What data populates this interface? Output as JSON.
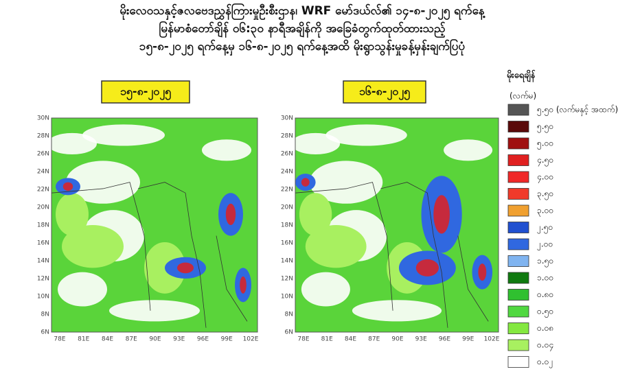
{
  "header": {
    "lines": [
      "မိုးလေဝသနှင့်ဇလဗေဒညွှန်ကြားမှုဦးစီးဌာန၊ WRF မော်ဒယ်လ်၏ ၁၄-၈-၂၀၂၅ ရက်နေ့",
      "မြန်မာစံတော်ချိန် ၀၆:၃၀ နာရီအချိန်ကို အခြေခံတွက်ထုတ်ထားသည့်",
      "၁၅-၈-၂၀၂၅ ရက်နေ့မှ ၁၆-၈-၂၀၂၅ ရက်နေ့အထိ မိုးရွာသွန်းမှုခန့်မှန်းချက်ပြပုံ"
    ]
  },
  "maps": [
    {
      "date": "၁၅-၈-၂၀၂၅"
    },
    {
      "date": "၁၆-၈-၂၀၂၅"
    }
  ],
  "axes": {
    "lat_labels": [
      "30N",
      "28N",
      "26N",
      "24N",
      "22N",
      "20N",
      "18N",
      "16N",
      "14N",
      "12N",
      "10N",
      "8N",
      "6N"
    ],
    "lon_labels": [
      "78E",
      "81E",
      "84E",
      "87E",
      "90E",
      "93E",
      "96E",
      "99E",
      "102E"
    ]
  },
  "legend": {
    "title": "မိုးရေချိန်",
    "unit": "(လက်မ)",
    "items": [
      {
        "label": "၅.၅၀ (လက်မနှင့် အထက်)",
        "color": "#555555"
      },
      {
        "label": "၅.၅၀",
        "color": "#5a0a0a"
      },
      {
        "label": "၅.၀၀",
        "color": "#a01010"
      },
      {
        "label": "၄.၅၀",
        "color": "#e02020"
      },
      {
        "label": "၄.၀၀",
        "color": "#f02828"
      },
      {
        "label": "၃.၅၀",
        "color": "#f03a2a"
      },
      {
        "label": "၃.၀၀",
        "color": "#f0a030"
      },
      {
        "label": "၂.၅၀",
        "color": "#2050d0"
      },
      {
        "label": "၂.၀၀",
        "color": "#3068e0"
      },
      {
        "label": "၁.၅၀",
        "color": "#80b4f0"
      },
      {
        "label": "၁.၀၀",
        "color": "#107a10"
      },
      {
        "label": "၀.၈၀",
        "color": "#30c030"
      },
      {
        "label": "၀.၅၀",
        "color": "#50d840"
      },
      {
        "label": "၀.၀၈",
        "color": "#84e840"
      },
      {
        "label": "၀.၀၄",
        "color": "#a8f060"
      },
      {
        "label": "၀.၀၂",
        "color": "#ffffff"
      }
    ]
  }
}
